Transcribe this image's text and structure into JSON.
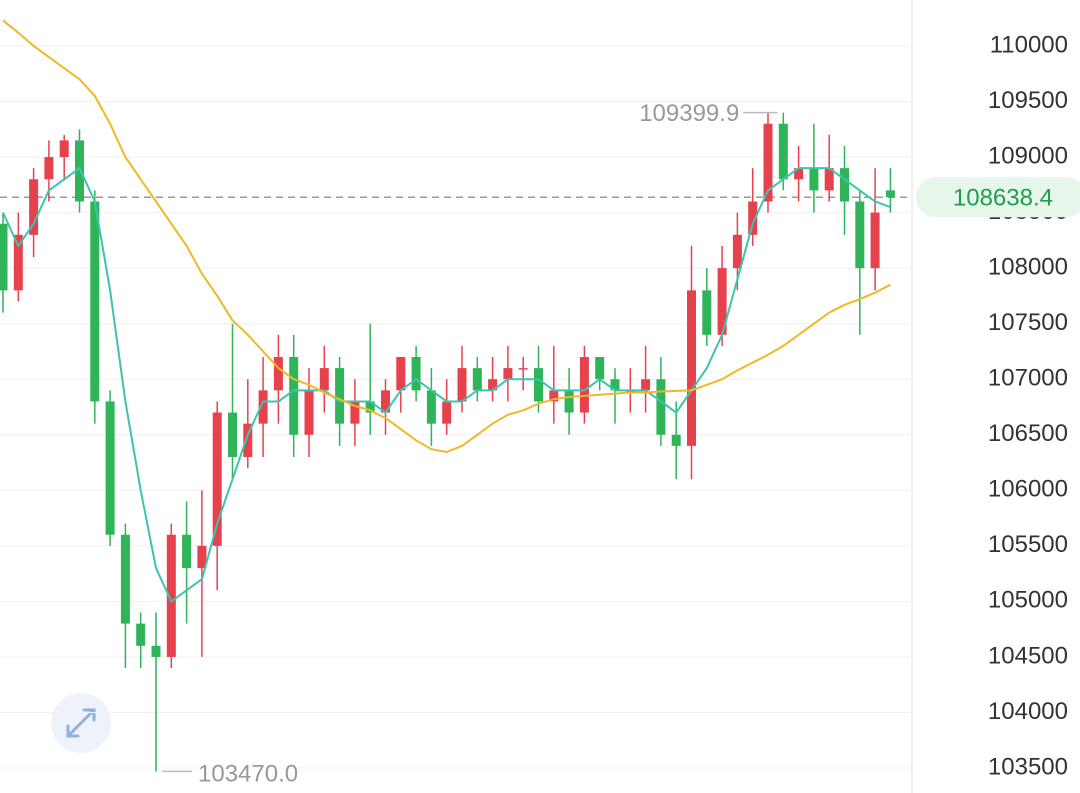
{
  "chart_data": {
    "type": "candlestick",
    "ylim": [
      103275,
      110414
    ],
    "yticks": [
      103500,
      104000,
      104500,
      105000,
      105500,
      106000,
      106500,
      107000,
      107500,
      108000,
      108500,
      109000,
      109500,
      110000
    ],
    "grid": true,
    "up_color": "#e5424d",
    "down_color": "#2fb45a",
    "ohlc": [
      [
        108400,
        108500,
        107600,
        107800
      ],
      [
        107800,
        108500,
        107700,
        108300
      ],
      [
        108300,
        108900,
        108100,
        108800
      ],
      [
        108800,
        109150,
        108600,
        109000
      ],
      [
        109000,
        109200,
        108800,
        109150
      ],
      [
        109150,
        109250,
        108500,
        108600
      ],
      [
        108600,
        108700,
        106600,
        106800
      ],
      [
        106800,
        106900,
        105500,
        105600
      ],
      [
        105600,
        105700,
        104400,
        104800
      ],
      [
        104800,
        104900,
        104400,
        104600
      ],
      [
        104600,
        104900,
        103470,
        104500
      ],
      [
        104500,
        105700,
        104400,
        105600
      ],
      [
        105600,
        105900,
        104800,
        105300
      ],
      [
        105300,
        106000,
        104500,
        105500
      ],
      [
        105500,
        106800,
        105100,
        106700
      ],
      [
        106700,
        107500,
        106100,
        106300
      ],
      [
        106300,
        107000,
        106200,
        106600
      ],
      [
        106600,
        107200,
        106300,
        106900
      ],
      [
        106900,
        107400,
        106600,
        107200
      ],
      [
        107200,
        107400,
        106300,
        106500
      ],
      [
        106500,
        107100,
        106300,
        106900
      ],
      [
        106900,
        107300,
        106700,
        107100
      ],
      [
        107100,
        107200,
        106400,
        106600
      ],
      [
        106600,
        107000,
        106400,
        106800
      ],
      [
        106800,
        107500,
        106500,
        106700
      ],
      [
        106700,
        107000,
        106500,
        106900
      ],
      [
        106900,
        107200,
        106700,
        107200
      ],
      [
        107200,
        107300,
        106800,
        106900
      ],
      [
        106900,
        107100,
        106400,
        106600
      ],
      [
        106600,
        107000,
        106500,
        106800
      ],
      [
        106800,
        107300,
        106700,
        107100
      ],
      [
        107100,
        107200,
        106800,
        106900
      ],
      [
        106900,
        107200,
        106800,
        107000
      ],
      [
        107000,
        107300,
        106800,
        107100
      ],
      [
        107100,
        107200,
        106900,
        107100
      ],
      [
        107100,
        107300,
        106700,
        106800
      ],
      [
        106800,
        107300,
        106600,
        106900
      ],
      [
        106900,
        107100,
        106500,
        106700
      ],
      [
        106700,
        107300,
        106600,
        107200
      ],
      [
        107200,
        107200,
        106900,
        107000
      ],
      [
        107000,
        107100,
        106600,
        106900
      ],
      [
        106900,
        107100,
        106700,
        106900
      ],
      [
        106900,
        107300,
        106700,
        107000
      ],
      [
        107000,
        107200,
        106400,
        106500
      ],
      [
        106500,
        106800,
        106100,
        106400
      ],
      [
        106400,
        108200,
        106100,
        107800
      ],
      [
        107800,
        108000,
        107300,
        107400
      ],
      [
        107400,
        108200,
        107300,
        108000
      ],
      [
        108000,
        108500,
        107800,
        108300
      ],
      [
        108300,
        108900,
        108200,
        108600
      ],
      [
        108600,
        109400,
        108500,
        109300
      ],
      [
        109300,
        109399.9,
        108700,
        108800
      ],
      [
        108800,
        109100,
        108600,
        108900
      ],
      [
        108900,
        109300,
        108500,
        108700
      ],
      [
        108700,
        109200,
        108600,
        108900
      ],
      [
        108900,
        109100,
        108300,
        108600
      ],
      [
        108600,
        108700,
        107400,
        108000
      ],
      [
        108000,
        108900,
        107800,
        108500
      ],
      [
        108700,
        108900,
        108500,
        108638.4
      ]
    ],
    "lines": [
      {
        "color": "#3cc4b0",
        "values": [
          108500,
          108200,
          108400,
          108700,
          108800,
          108900,
          108600,
          107800,
          106800,
          106000,
          105300,
          105000,
          105100,
          105200,
          105700,
          106100,
          106500,
          106800,
          106800,
          106900,
          106900,
          106900,
          106800,
          106800,
          106800,
          106700,
          106900,
          107000,
          106900,
          106800,
          106800,
          106900,
          106900,
          107000,
          107000,
          107000,
          106900,
          106900,
          106900,
          107000,
          106900,
          106900,
          106900,
          106800,
          106700,
          106900,
          107100,
          107400,
          107900,
          108400,
          108700,
          108800,
          108900,
          108900,
          108900,
          108800,
          108700,
          108600,
          108550
        ]
      },
      {
        "color": "#f0b825",
        "values": [
          110230,
          110120,
          110000,
          109900,
          109800,
          109700,
          109550,
          109300,
          109000,
          108800,
          108600,
          108400,
          108200,
          107950,
          107750,
          107530,
          107400,
          107250,
          107100,
          107000,
          106950,
          106880,
          106820,
          106760,
          106720,
          106650,
          106550,
          106450,
          106370,
          106345,
          106400,
          106500,
          106600,
          106680,
          106720,
          106780,
          106820,
          106840,
          106850,
          106860,
          106870,
          106880,
          106880,
          106890,
          106895,
          106900,
          106950,
          107000,
          107080,
          107150,
          107220,
          107300,
          107400,
          107500,
          107600,
          107670,
          107720,
          107780,
          107850
        ]
      }
    ],
    "high_label": {
      "value": 109399.9,
      "label": "109399.9"
    },
    "low_label": {
      "value": 103470.0,
      "label": "103470.0"
    },
    "last_price": {
      "value": 108638.4,
      "label": "108638.4"
    }
  }
}
